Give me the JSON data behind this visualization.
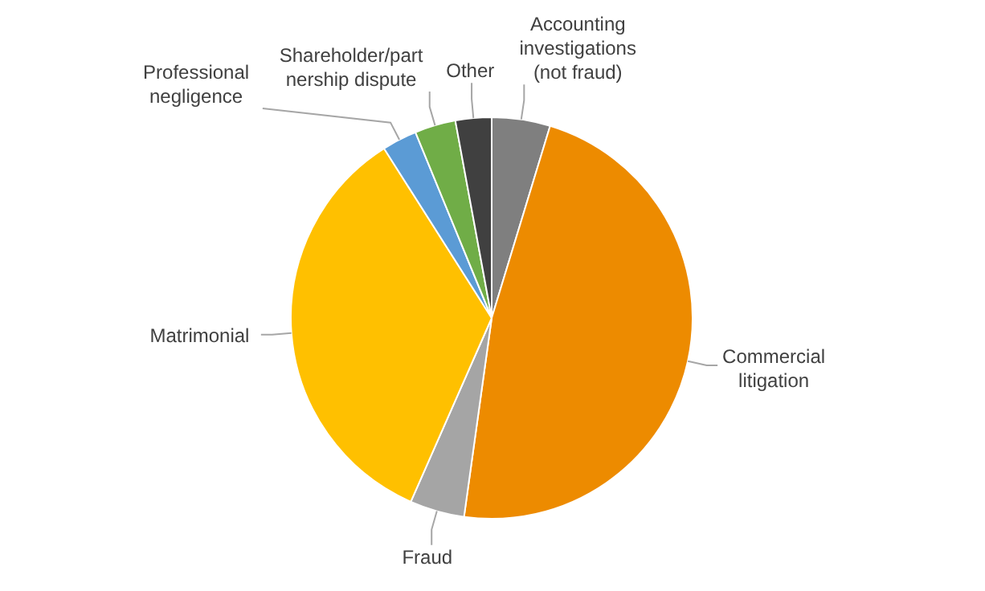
{
  "chart_data": {
    "type": "pie",
    "categories": [
      "Accounting investigations (not fraud)",
      "Commercial litigation",
      "Fraud",
      "Matrimonial",
      "Professional negligence",
      "Shareholder/partnership dispute",
      "Other"
    ],
    "values": [
      4.7,
      47.5,
      4.4,
      34.4,
      2.8,
      3.3,
      2.9
    ],
    "colors": [
      "#7f7f7f",
      "#ed8b00",
      "#a5a5a5",
      "#ffc000",
      "#5b9bd5",
      "#70ad47",
      "#404040"
    ]
  }
}
